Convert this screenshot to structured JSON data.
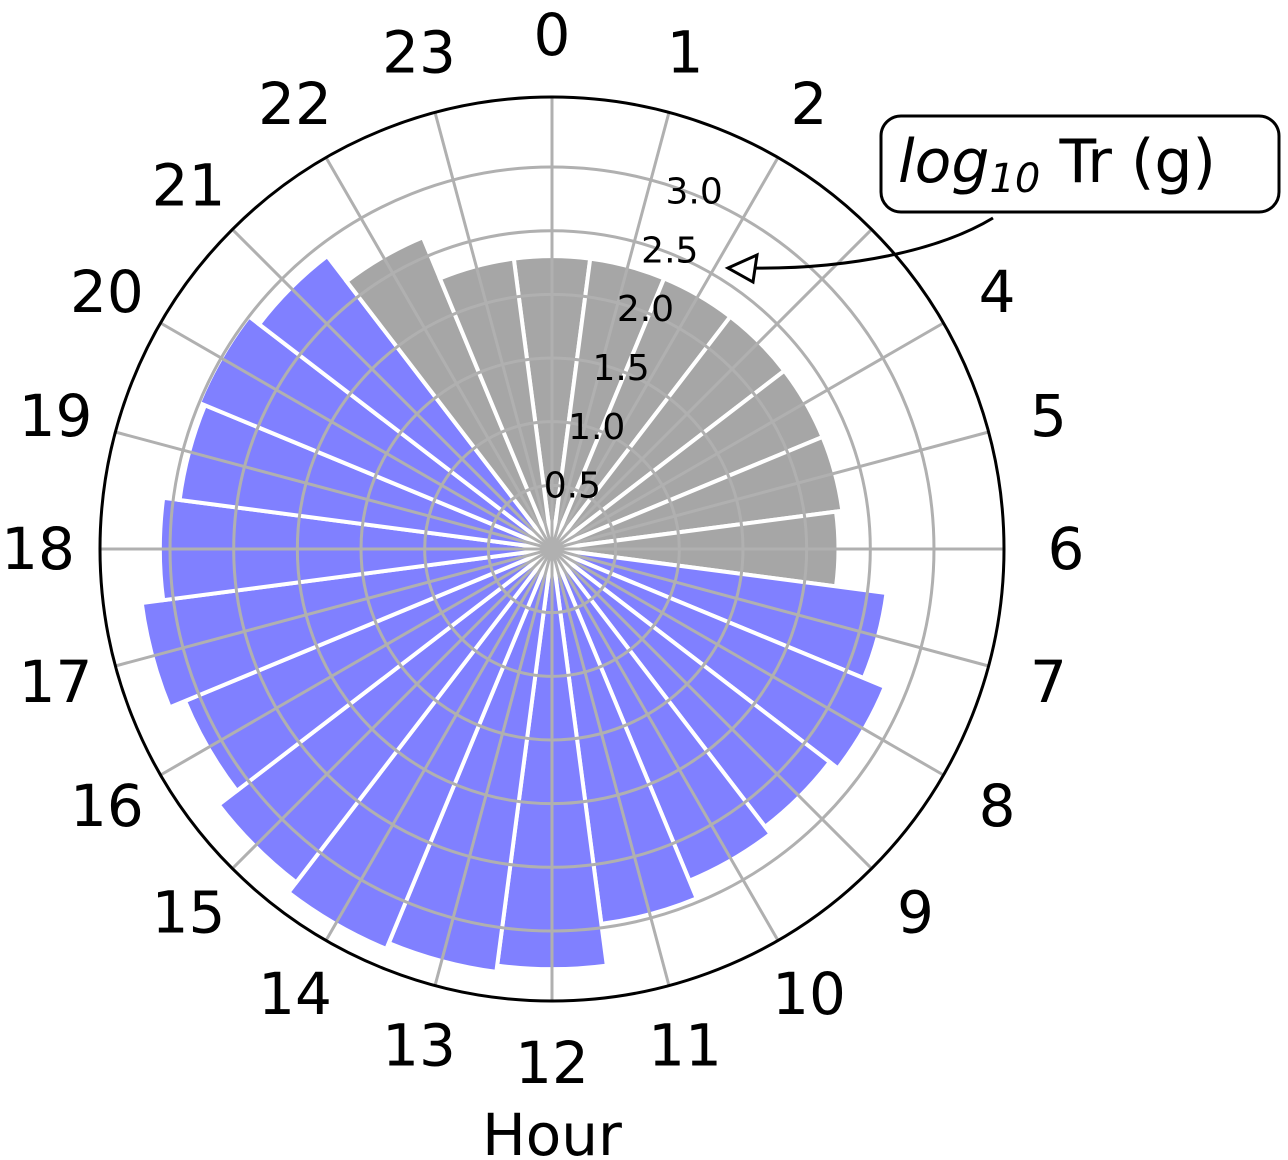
{
  "chart_data": {
    "type": "bar",
    "subtype": "polar",
    "title": "",
    "xlabel": "Hour",
    "ylabel": "",
    "categories": [
      "0",
      "1",
      "2",
      "3",
      "4",
      "5",
      "6",
      "7",
      "8",
      "9",
      "10",
      "11",
      "12",
      "13",
      "14",
      "15",
      "16",
      "17",
      "18",
      "19",
      "20",
      "21",
      "22",
      "23"
    ],
    "values": [
      2.3,
      2.3,
      2.3,
      2.3,
      2.3,
      2.3,
      2.25,
      2.65,
      2.83,
      2.75,
      2.82,
      2.97,
      3.3,
      3.35,
      3.4,
      3.3,
      3.12,
      3.25,
      3.08,
      2.95,
      3.0,
      2.9,
      2.65,
      2.3
    ],
    "series_colors": [
      "#a6a6a6",
      "#a6a6a6",
      "#a6a6a6",
      "#a6a6a6",
      "#a6a6a6",
      "#a6a6a6",
      "#a6a6a6",
      "#8080ff",
      "#8080ff",
      "#8080ff",
      "#8080ff",
      "#8080ff",
      "#8080ff",
      "#8080ff",
      "#8080ff",
      "#8080ff",
      "#8080ff",
      "#8080ff",
      "#8080ff",
      "#8080ff",
      "#8080ff",
      "#8080ff",
      "#a6a6a6",
      "#a6a6a6"
    ],
    "rticks": [
      "0.5",
      "1.0",
      "1.5",
      "2.0",
      "2.5",
      "3.0"
    ],
    "rtick_values": [
      0.5,
      1.0,
      1.5,
      2.0,
      2.5,
      3.0
    ],
    "rlim": [
      0,
      3.55
    ],
    "theta_direction": "clockwise",
    "theta_zero": "top",
    "grid": true,
    "annotation": {
      "text_main": "log",
      "text_sub": "10",
      "text_rest": " Tr (g)"
    }
  },
  "colors": {
    "grid": "#b0b0b0",
    "frame": "#000000",
    "bar_edge": "#ffffff"
  }
}
